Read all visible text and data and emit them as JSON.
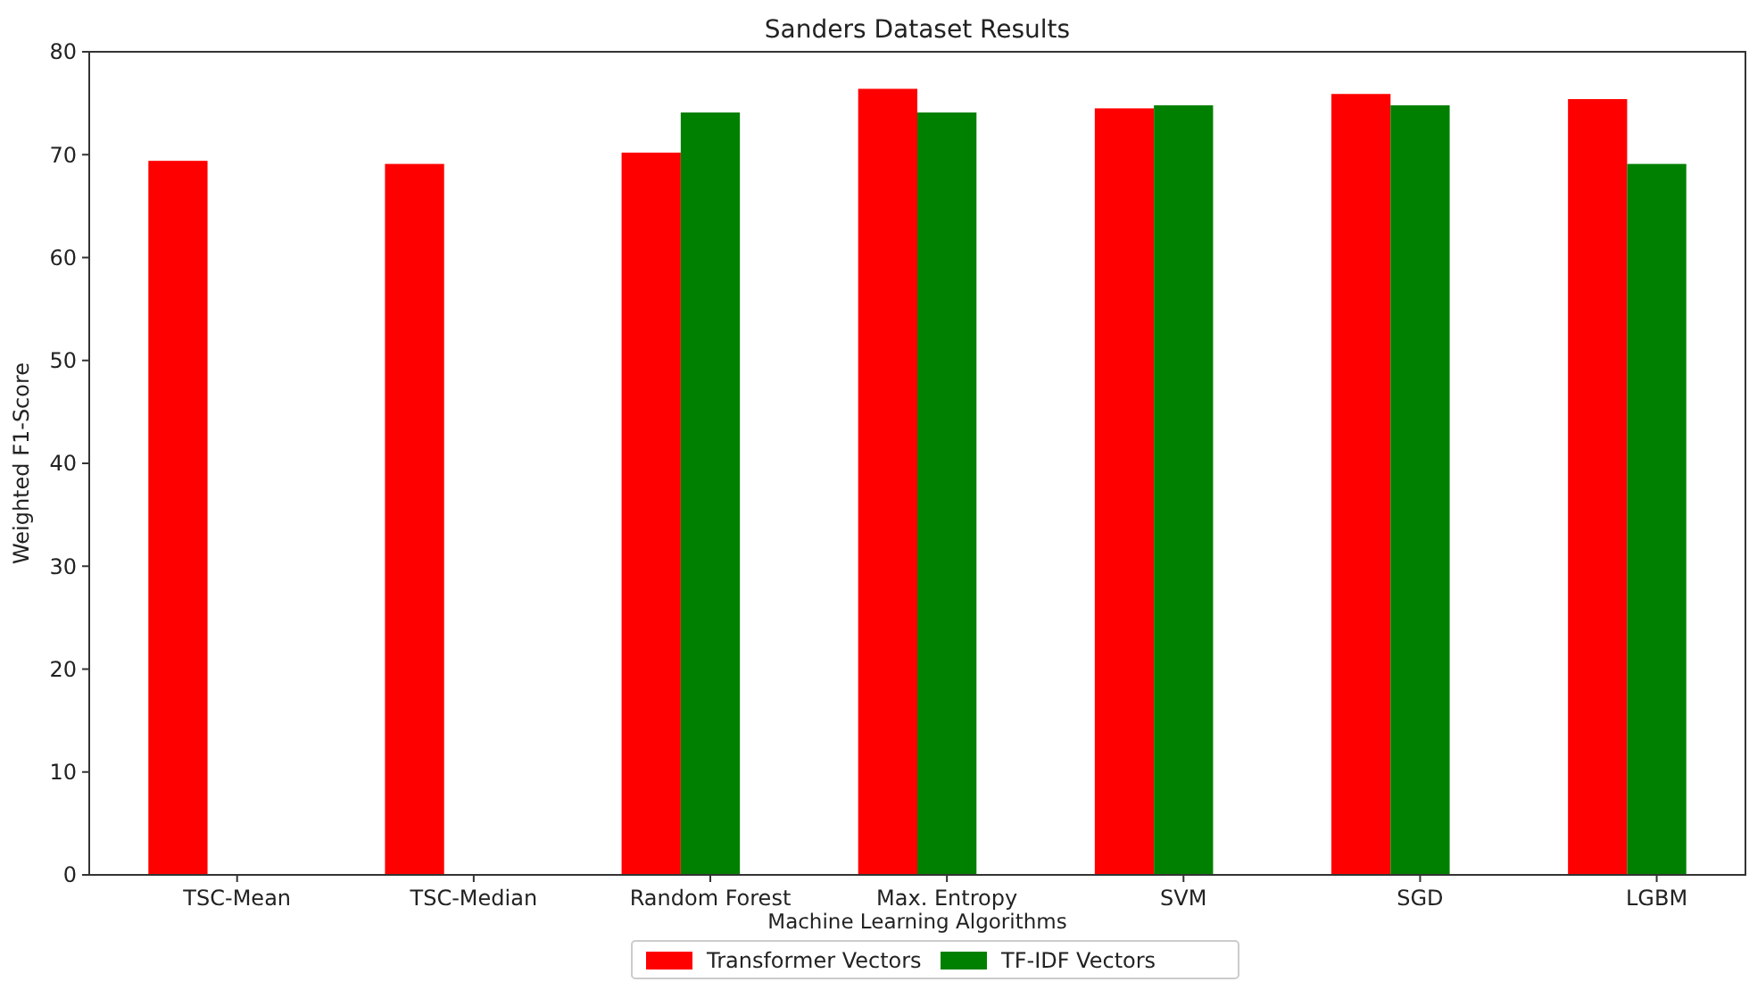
{
  "chart_data": {
    "type": "bar",
    "title": "Sanders Dataset Results",
    "xlabel": "Machine Learning Algorithms",
    "ylabel": "Weighted F1-Score",
    "categories": [
      "TSC-Mean",
      "TSC-Median",
      "Random Forest",
      "Max. Entropy",
      "SVM",
      "SGD",
      "LGBM"
    ],
    "series": [
      {
        "name": "Transformer Vectors",
        "color": "#ff0000",
        "values": [
          69.4,
          69.1,
          70.2,
          76.4,
          74.5,
          75.9,
          75.4
        ]
      },
      {
        "name": "TF-IDF Vectors",
        "color": "#008000",
        "values": [
          null,
          null,
          74.1,
          74.1,
          74.8,
          74.8,
          69.1
        ]
      }
    ],
    "ylim": [
      0,
      80
    ],
    "yticks": [
      0,
      10,
      20,
      30,
      40,
      50,
      60,
      70,
      80
    ],
    "legend": "bottom"
  }
}
